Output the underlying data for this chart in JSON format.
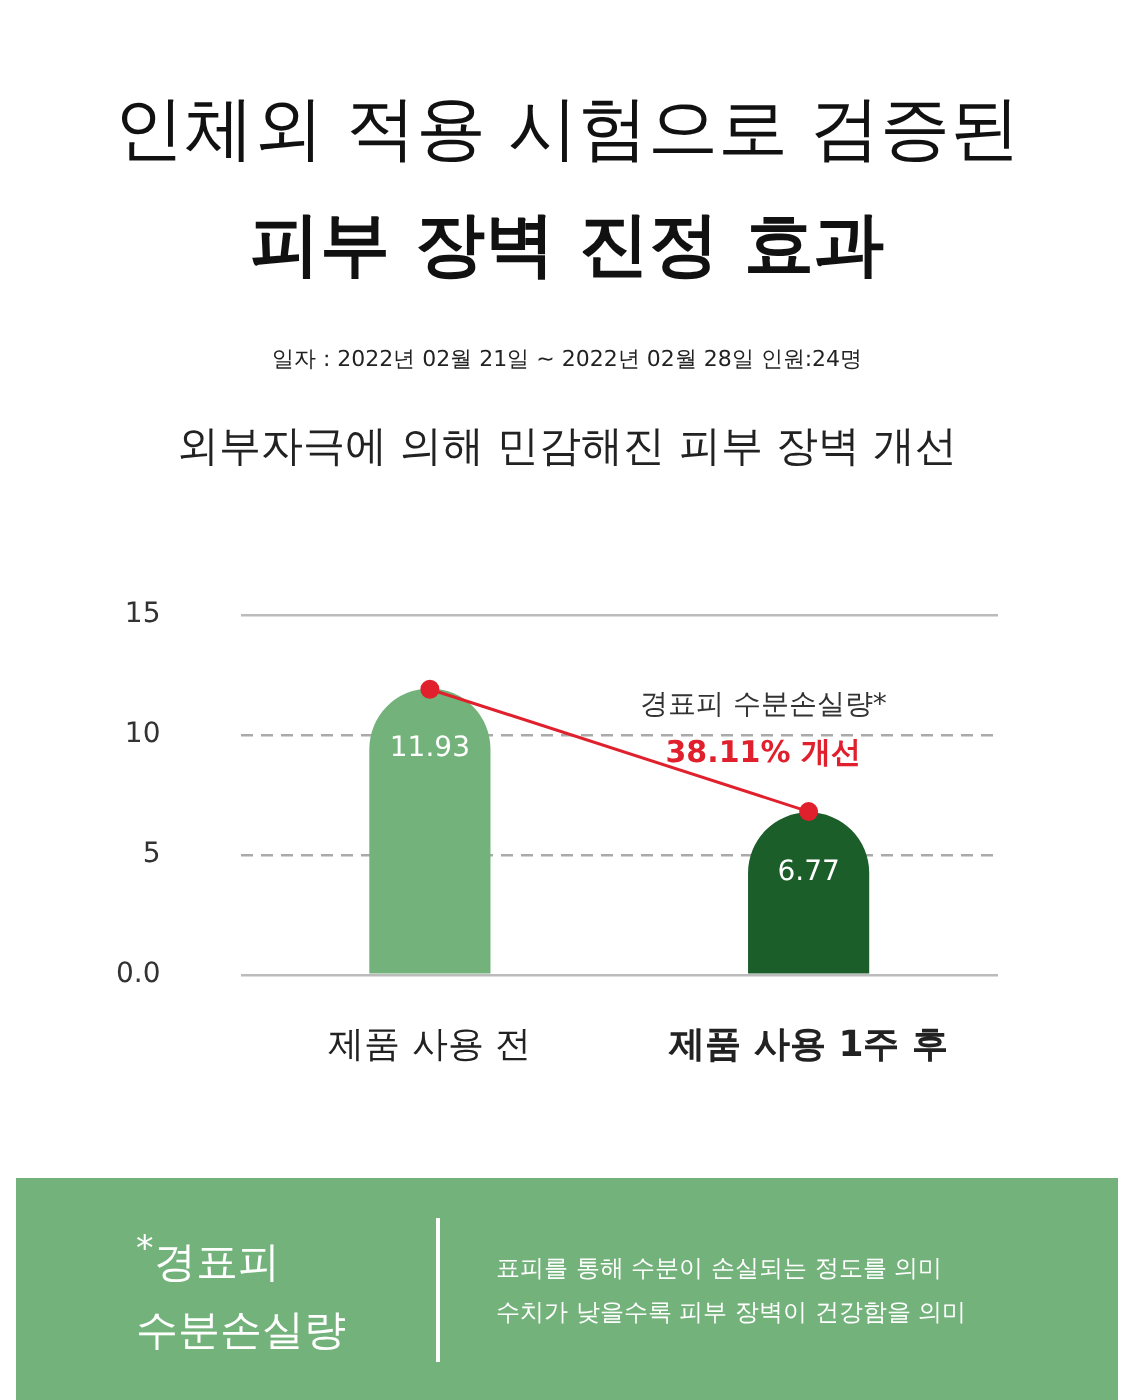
{
  "chart_data": {
    "type": "bar",
    "title": "인체외 적용 시험으로 검증된\n피부 장벽 진정 효과",
    "subtitle": "외부자극에 의해 민감해진 피부 장벽 개선",
    "categories": [
      "제품 사용 전",
      "제품 사용 1주 후"
    ],
    "series": [
      {
        "colors": [
          "#73b27a",
          "#1b5e2a"
        ],
        "values": [
          11.93,
          6.77
        ],
        "value_labels": [
          "11.93",
          "6.77"
        ]
      },
      {
        "type": "line",
        "color": "#e0202c",
        "values": [
          11.9,
          6.8
        ]
      }
    ],
    "ylim": [
      0,
      15
    ],
    "yticks": [
      {
        "value": 0,
        "label": "0.0"
      },
      5,
      10,
      15
    ],
    "grid": "y",
    "legend": false,
    "marker": "circle",
    "annotations": [
      "일자 : 2022년 02월 21일 ~ 2022년 02월 28일 인원:24명",
      "경표피 수분손실량*",
      "38.11% 개선",
      "$^{*}$경표피\n수분손실량",
      "표피를 통해 수분이 손실되는 정도를 의미",
      "수치가 낮을수록 피부 장벽이 건강함을 의미"
    ]
  }
}
